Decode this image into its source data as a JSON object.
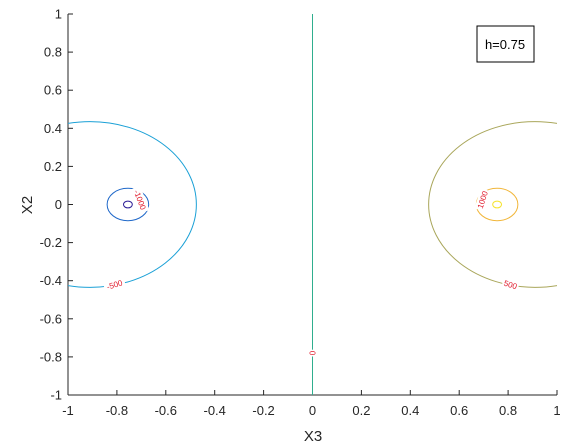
{
  "chart_data": {
    "type": "contour",
    "xlabel": "X3",
    "ylabel": "X2",
    "xlim": [
      -1,
      1
    ],
    "ylim": [
      -1,
      1
    ],
    "xticks": [
      -1,
      -0.8,
      -0.6,
      -0.4,
      -0.2,
      0,
      0.2,
      0.4,
      0.6,
      0.8,
      1
    ],
    "yticks": [
      -1,
      -0.8,
      -0.6,
      -0.4,
      -0.2,
      0,
      0.2,
      0.4,
      0.6,
      0.8,
      1
    ],
    "xtick_labels": [
      "-1",
      "-0.8",
      "-0.6",
      "-0.4",
      "-0.2",
      "0",
      "0.2",
      "0.4",
      "0.6",
      "0.8",
      "1"
    ],
    "ytick_labels": [
      "-1",
      "-0.8",
      "-0.6",
      "-0.4",
      "-0.2",
      "0",
      "0.2",
      "0.4",
      "0.6",
      "0.8",
      "1"
    ],
    "grid": false,
    "legend_text": "h=0.75",
    "legend_position": "top-right",
    "contours": [
      {
        "level": 0,
        "label": "0",
        "type": "vline",
        "x": 0,
        "color": "#2fae8e",
        "label_at": [
          0,
          -0.78
        ]
      },
      {
        "level": -500,
        "label": "-500",
        "type": "circle",
        "cx": -0.91,
        "cy": 0,
        "r": 0.435,
        "color": "#1aa0d6",
        "label_at": [
          -0.81,
          -0.42
        ]
      },
      {
        "level": -1000,
        "label": "-1000",
        "type": "circle",
        "cx": -0.755,
        "cy": 0,
        "r": 0.085,
        "color": "#1f68c9",
        "label_at": [
          -0.705,
          0.025
        ]
      },
      {
        "level": -1500,
        "type": "circle",
        "cx": -0.755,
        "cy": 0,
        "r": 0.018,
        "color": "#2a1b96"
      },
      {
        "level": 500,
        "label": "500",
        "type": "circle",
        "cx": 0.91,
        "cy": 0,
        "r": 0.435,
        "color": "#a9a65a",
        "label_at": [
          0.81,
          -0.42
        ]
      },
      {
        "level": 1000,
        "label": "1000",
        "type": "circle",
        "cx": 0.755,
        "cy": 0,
        "r": 0.085,
        "color": "#f1b63a",
        "label_at": [
          0.695,
          0.025
        ]
      },
      {
        "level": 1500,
        "type": "circle",
        "cx": 0.755,
        "cy": 0,
        "r": 0.018,
        "color": "#f5e32b"
      }
    ]
  }
}
